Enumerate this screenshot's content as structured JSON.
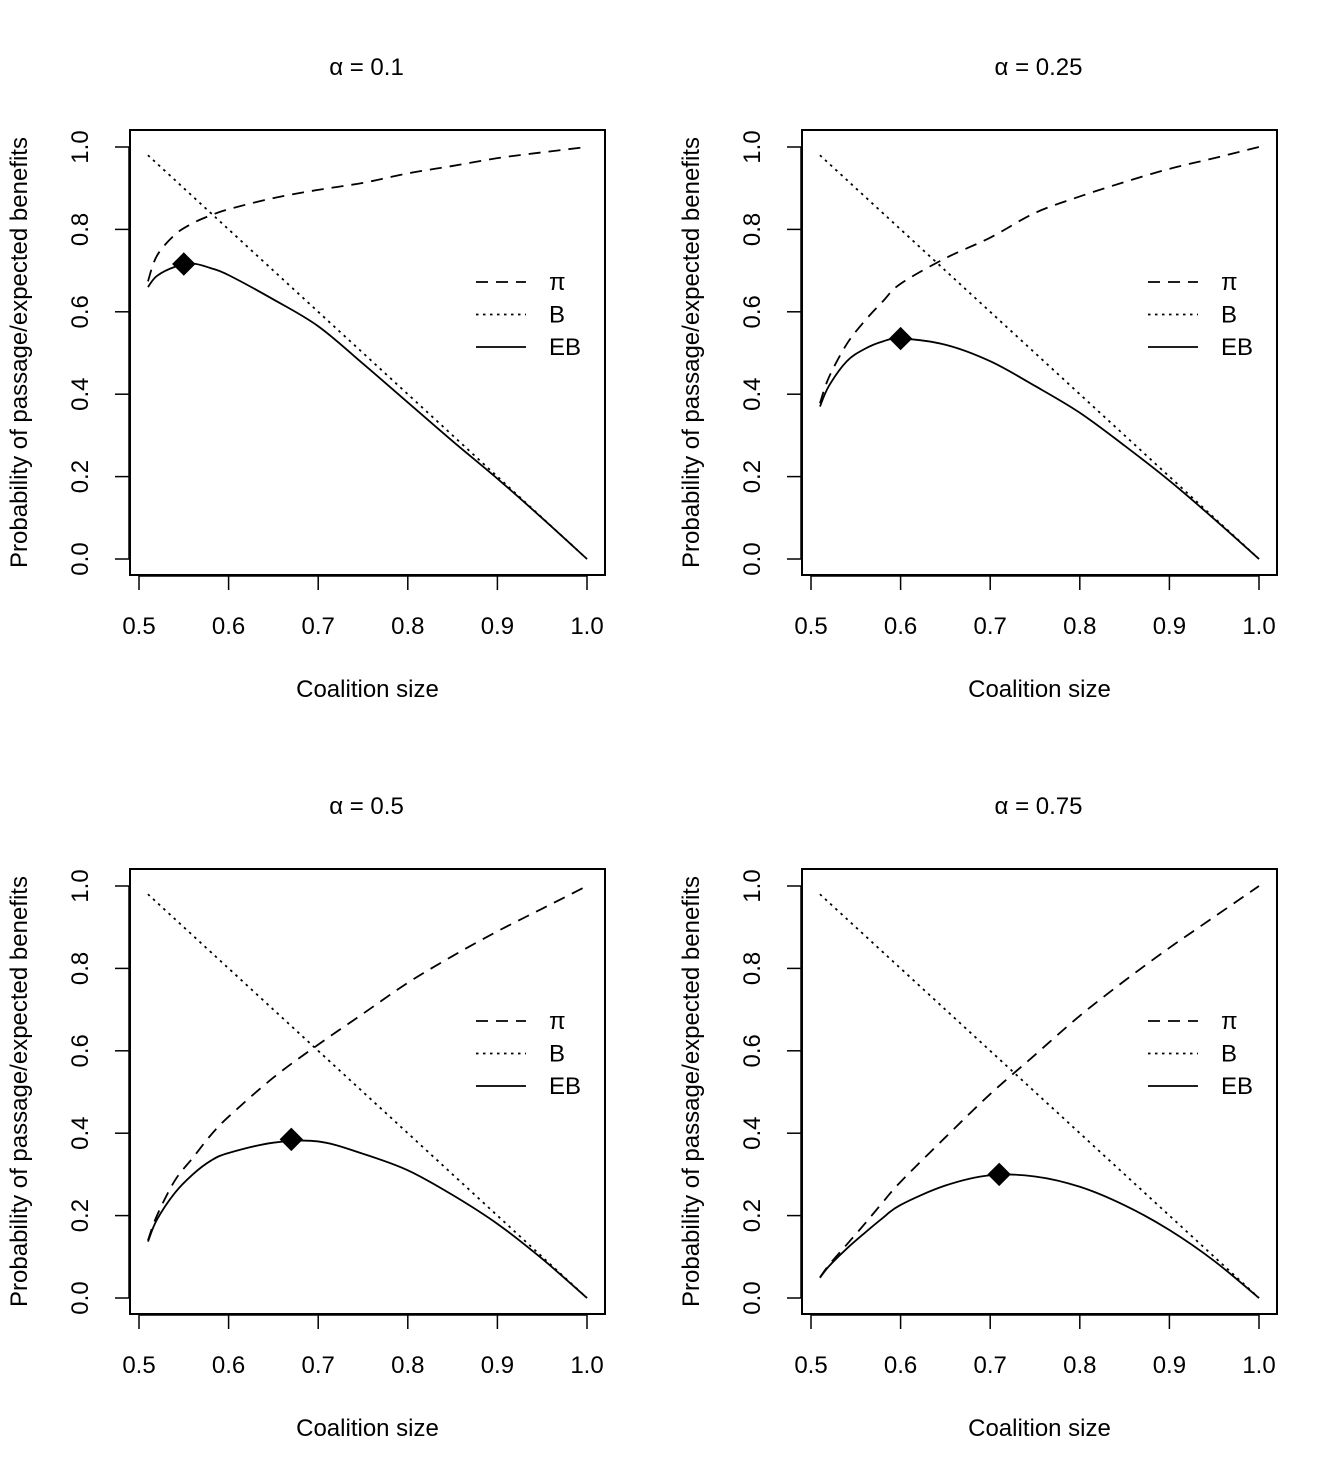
{
  "colors": {
    "background": "#ffffff",
    "ink": "#000000"
  },
  "chart_data": [
    {
      "type": "line",
      "title": "α = 0.1",
      "xlabel": "Coalition size",
      "ylabel": "Probability of passage/expected benefits",
      "xlim": [
        0.5,
        1.0
      ],
      "ylim": [
        0.0,
        1.0
      ],
      "xticks": [
        "0.5",
        "0.6",
        "0.7",
        "0.8",
        "0.9",
        "1.0"
      ],
      "yticks": [
        "0.0",
        "0.2",
        "0.4",
        "0.6",
        "0.8",
        "1.0"
      ],
      "grid": false,
      "legend_position": "right",
      "x": [
        0.51,
        0.52,
        0.54,
        0.56,
        0.58,
        0.6,
        0.65,
        0.7,
        0.75,
        0.8,
        0.85,
        0.9,
        0.95,
        1.0
      ],
      "series": [
        {
          "name": "π",
          "style": "dashed",
          "values": [
            0.674,
            0.736,
            0.787,
            0.815,
            0.834,
            0.849,
            0.876,
            0.896,
            0.913,
            0.936,
            0.954,
            0.973,
            0.987,
            1.0
          ]
        },
        {
          "name": "B",
          "style": "dotted",
          "values": [
            0.98,
            0.96,
            0.92,
            0.88,
            0.84,
            0.8,
            0.7,
            0.6,
            0.5,
            0.4,
            0.3,
            0.2,
            0.1,
            0.0
          ]
        },
        {
          "name": "EB",
          "style": "solid",
          "values": [
            0.66,
            0.687,
            0.709,
            0.717,
            0.706,
            0.689,
            0.63,
            0.565,
            0.474,
            0.38,
            0.286,
            0.195,
            0.099,
            0.0
          ]
        }
      ],
      "marker": {
        "x": 0.55,
        "y": 0.716,
        "shape": "diamond"
      }
    },
    {
      "type": "line",
      "title": "α = 0.25",
      "xlabel": "Coalition size",
      "ylabel": "Probability of passage/expected benefits",
      "xlim": [
        0.5,
        1.0
      ],
      "ylim": [
        0.0,
        1.0
      ],
      "xticks": [
        "0.5",
        "0.6",
        "0.7",
        "0.8",
        "0.9",
        "1.0"
      ],
      "yticks": [
        "0.0",
        "0.2",
        "0.4",
        "0.6",
        "0.8",
        "1.0"
      ],
      "grid": false,
      "legend_position": "right",
      "x": [
        0.51,
        0.52,
        0.54,
        0.56,
        0.58,
        0.6,
        0.65,
        0.7,
        0.75,
        0.8,
        0.85,
        0.9,
        0.95,
        1.0
      ],
      "series": [
        {
          "name": "π",
          "style": "dashed",
          "values": [
            0.378,
            0.441,
            0.522,
            0.578,
            0.625,
            0.668,
            0.73,
            0.78,
            0.84,
            0.88,
            0.915,
            0.947,
            0.973,
            1.0
          ]
        },
        {
          "name": "B",
          "style": "dotted",
          "values": [
            0.98,
            0.96,
            0.92,
            0.88,
            0.84,
            0.8,
            0.7,
            0.6,
            0.5,
            0.4,
            0.3,
            0.2,
            0.1,
            0.0
          ]
        },
        {
          "name": "EB",
          "style": "solid",
          "values": [
            0.37,
            0.42,
            0.48,
            0.51,
            0.528,
            0.535,
            0.52,
            0.48,
            0.42,
            0.355,
            0.275,
            0.19,
            0.097,
            0.0
          ]
        }
      ],
      "marker": {
        "x": 0.6,
        "y": 0.535,
        "shape": "diamond"
      }
    },
    {
      "type": "line",
      "title": "α = 0.5",
      "xlabel": "Coalition size",
      "ylabel": "Probability of passage/expected benefits",
      "xlim": [
        0.5,
        1.0
      ],
      "ylim": [
        0.0,
        1.0
      ],
      "xticks": [
        "0.5",
        "0.6",
        "0.7",
        "0.8",
        "0.9",
        "1.0"
      ],
      "yticks": [
        "0.0",
        "0.2",
        "0.4",
        "0.6",
        "0.8",
        "1.0"
      ],
      "grid": false,
      "legend_position": "right",
      "x": [
        0.51,
        0.52,
        0.54,
        0.56,
        0.58,
        0.6,
        0.65,
        0.7,
        0.75,
        0.8,
        0.85,
        0.9,
        0.95,
        1.0
      ],
      "series": [
        {
          "name": "π",
          "style": "dashed",
          "values": [
            0.14,
            0.2,
            0.285,
            0.34,
            0.395,
            0.44,
            0.535,
            0.615,
            0.69,
            0.765,
            0.83,
            0.89,
            0.945,
            1.0
          ]
        },
        {
          "name": "B",
          "style": "dotted",
          "values": [
            0.98,
            0.96,
            0.92,
            0.88,
            0.84,
            0.8,
            0.7,
            0.6,
            0.5,
            0.4,
            0.3,
            0.2,
            0.1,
            0.0
          ]
        },
        {
          "name": "EB",
          "style": "solid",
          "values": [
            0.137,
            0.19,
            0.255,
            0.3,
            0.333,
            0.352,
            0.377,
            0.38,
            0.35,
            0.31,
            0.25,
            0.18,
            0.095,
            0.0
          ]
        }
      ],
      "marker": {
        "x": 0.67,
        "y": 0.385,
        "shape": "diamond"
      }
    },
    {
      "type": "line",
      "title": "α = 0.75",
      "xlabel": "Coalition size",
      "ylabel": "Probability of passage/expected benefits",
      "xlim": [
        0.5,
        1.0
      ],
      "ylim": [
        0.0,
        1.0
      ],
      "xticks": [
        "0.5",
        "0.6",
        "0.7",
        "0.8",
        "0.9",
        "1.0"
      ],
      "yticks": [
        "0.0",
        "0.2",
        "0.4",
        "0.6",
        "0.8",
        "1.0"
      ],
      "grid": false,
      "legend_position": "right",
      "x": [
        0.51,
        0.52,
        0.54,
        0.56,
        0.58,
        0.6,
        0.65,
        0.7,
        0.75,
        0.8,
        0.85,
        0.9,
        0.95,
        1.0
      ],
      "series": [
        {
          "name": "π",
          "style": "dashed",
          "values": [
            0.05,
            0.08,
            0.13,
            0.18,
            0.232,
            0.282,
            0.39,
            0.495,
            0.59,
            0.685,
            0.77,
            0.85,
            0.925,
            1.0
          ]
        },
        {
          "name": "B",
          "style": "dotted",
          "values": [
            0.98,
            0.96,
            0.92,
            0.88,
            0.84,
            0.8,
            0.7,
            0.6,
            0.5,
            0.4,
            0.3,
            0.2,
            0.1,
            0.0
          ]
        },
        {
          "name": "EB",
          "style": "solid",
          "values": [
            0.049,
            0.077,
            0.12,
            0.158,
            0.194,
            0.226,
            0.273,
            0.298,
            0.295,
            0.27,
            0.225,
            0.165,
            0.09,
            0.0
          ]
        }
      ],
      "marker": {
        "x": 0.71,
        "y": 0.3,
        "shape": "diamond"
      }
    }
  ]
}
